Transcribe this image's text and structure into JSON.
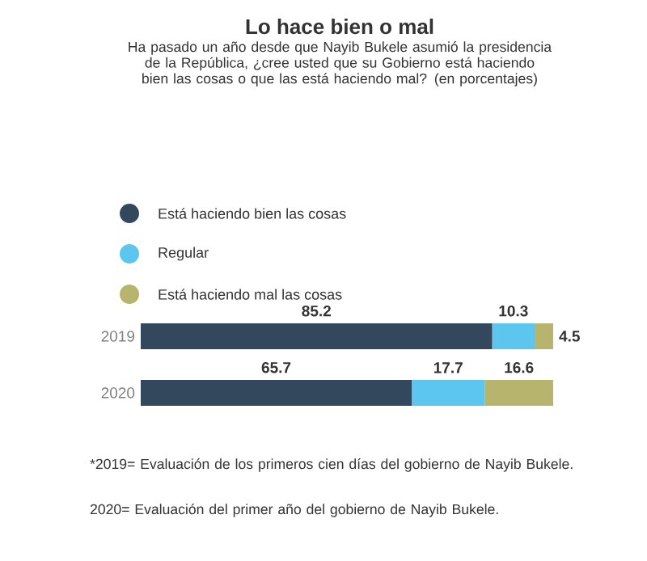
{
  "chart_data": {
    "type": "bar",
    "orientation": "horizontal",
    "stacked": true,
    "title": "Lo hace bien o mal",
    "subtitle": "Ha pasado un año desde que Nayib Bukele asumió la presidencia de la República, ¿cree usted que su Gobierno está haciendo bien las cosas o que las está haciendo mal? (en porcentajes)",
    "categories": [
      "2019",
      "2020"
    ],
    "series": [
      {
        "name": "Está haciendo bien las cosas",
        "color": "#33485c",
        "values": [
          85.2,
          65.7
        ]
      },
      {
        "name": "Regular",
        "color": "#5cc6ee",
        "values": [
          10.3,
          17.7
        ]
      },
      {
        "name": "Está haciendo mal las cosas",
        "color": "#b7b46e",
        "values": [
          4.5,
          16.6
        ]
      }
    ],
    "data_labels": true,
    "legend": "top",
    "tick_labels": "y",
    "annotations": [
      "*2019= Evaluación de los primeros cien días del gobierno de Nayib Bukele.",
      "2020= Evaluación del primer año del gobierno de Nayib Bukele."
    ]
  }
}
